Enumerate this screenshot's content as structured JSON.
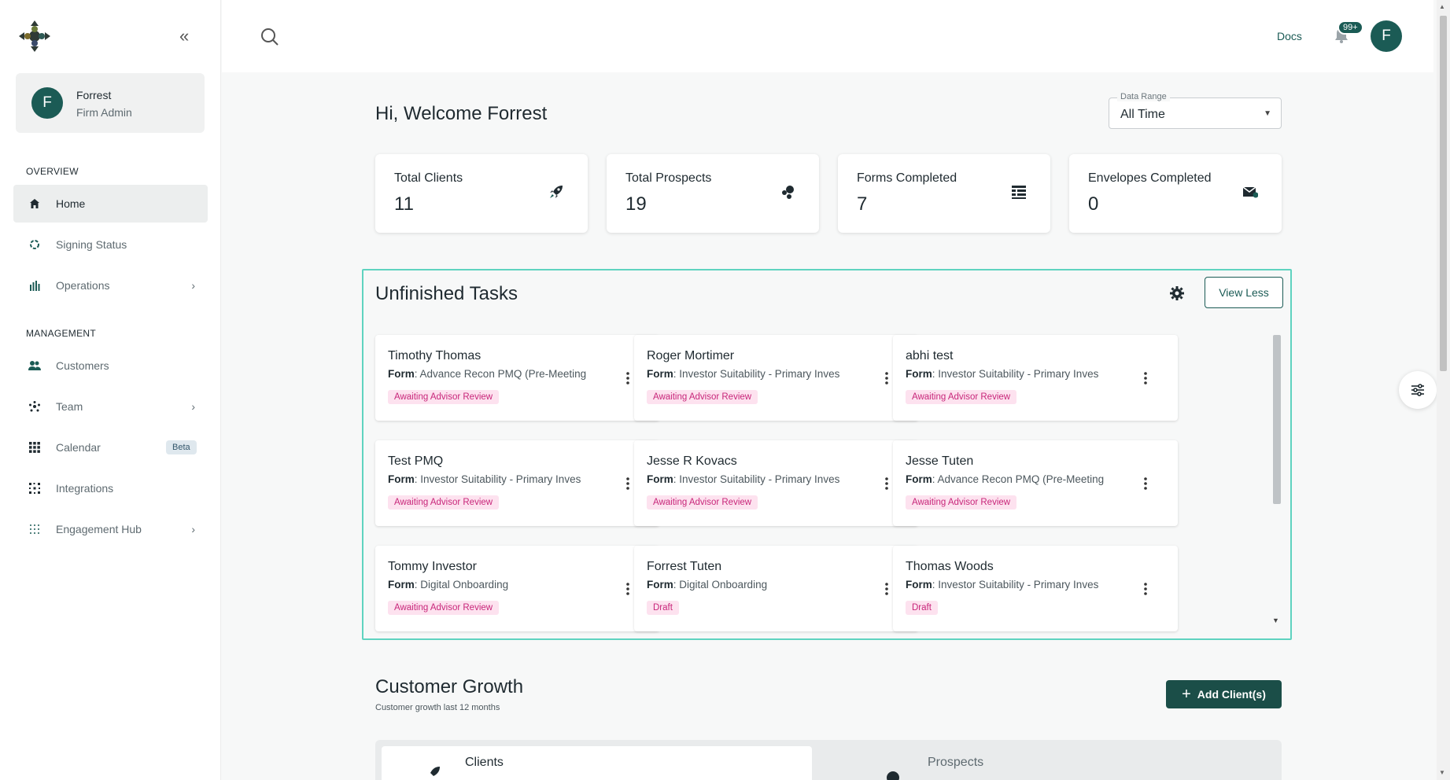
{
  "sidebar": {
    "collapse_glyph": "«",
    "profile": {
      "initial": "F",
      "name": "Forrest",
      "role": "Firm Admin"
    },
    "overview_title": "OVERVIEW",
    "management_title": "MANAGEMENT",
    "items": [
      {
        "label": "Home",
        "icon": "home-icon"
      },
      {
        "label": "Signing Status",
        "icon": "progress-icon"
      },
      {
        "label": "Operations",
        "icon": "bar-chart-icon"
      },
      {
        "label": "Customers",
        "icon": "people-icon"
      },
      {
        "label": "Team",
        "icon": "team-icon"
      },
      {
        "label": "Calendar",
        "icon": "grid-icon",
        "badge": "Beta"
      },
      {
        "label": "Integrations",
        "icon": "integrations-icon"
      },
      {
        "label": "Engagement Hub",
        "icon": "dots-grid-icon"
      }
    ]
  },
  "header": {
    "docs_label": "Docs",
    "notification_count": "99+",
    "avatar_initial": "F"
  },
  "main": {
    "welcome": "Hi, Welcome Forrest",
    "data_range": {
      "label": "Data Range",
      "value": "All Time"
    },
    "stats": [
      {
        "label": "Total Clients",
        "value": "11",
        "icon": "rocket-icon"
      },
      {
        "label": "Total Prospects",
        "value": "19",
        "icon": "bubbles-icon"
      },
      {
        "label": "Forms Completed",
        "value": "7",
        "icon": "form-list-icon"
      },
      {
        "label": "Envelopes Completed",
        "value": "0",
        "icon": "envelope-icon"
      }
    ],
    "tasks": {
      "title": "Unfinished Tasks",
      "view_less_label": "View Less",
      "form_prefix": "Form",
      "cards": [
        {
          "name": "Timothy Thomas",
          "form": "Advance Recon PMQ (Pre-Meeting",
          "status": "Awaiting Advisor Review"
        },
        {
          "name": "Roger Mortimer",
          "form": "Investor Suitability - Primary Inves",
          "status": "Awaiting Advisor Review"
        },
        {
          "name": "abhi test",
          "form": "Investor Suitability - Primary Inves",
          "status": "Awaiting Advisor Review"
        },
        {
          "name": "Test PMQ",
          "form": "Investor Suitability - Primary Inves",
          "status": "Awaiting Advisor Review"
        },
        {
          "name": "Jesse R Kovacs",
          "form": "Investor Suitability - Primary Inves",
          "status": "Awaiting Advisor Review"
        },
        {
          "name": "Jesse Tuten",
          "form": "Advance Recon PMQ (Pre-Meeting",
          "status": "Awaiting Advisor Review"
        },
        {
          "name": "Tommy Investor",
          "form": "Digital Onboarding",
          "status": "Awaiting Advisor Review"
        },
        {
          "name": "Forrest Tuten",
          "form": "Digital Onboarding",
          "status": "Draft"
        },
        {
          "name": "Thomas Woods",
          "form": "Investor Suitability - Primary Inves",
          "status": "Draft"
        }
      ]
    },
    "growth": {
      "title": "Customer Growth",
      "subtitle": "Customer growth last 12 months",
      "add_label": "Add Client(s)",
      "tabs": [
        "Clients",
        "Prospects"
      ]
    }
  },
  "colors": {
    "brand": "#1b5b55",
    "highlight_border": "#5fd3c0",
    "status_pink": "#c8267a"
  }
}
